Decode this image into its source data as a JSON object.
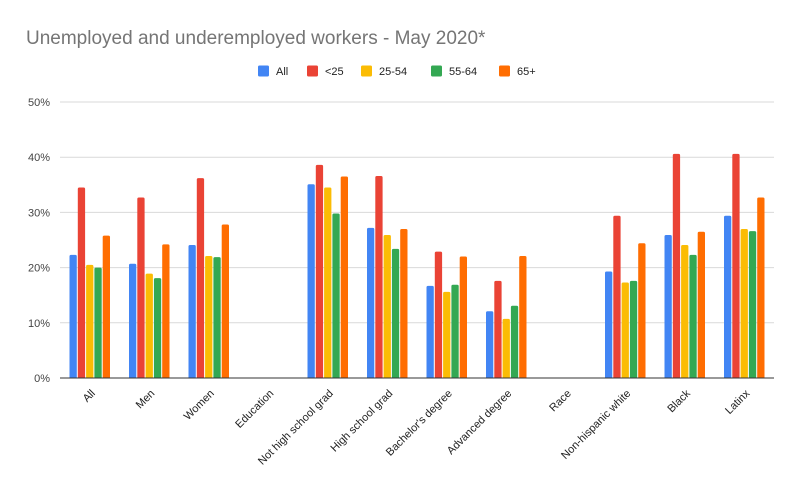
{
  "chart_data": {
    "type": "bar",
    "title": "Unemployed and underemployed workers - May 2020*",
    "xlabel": "",
    "ylabel": "",
    "ylim": [
      0,
      50
    ],
    "yticks": [
      "0%",
      "10%",
      "20%",
      "30%",
      "40%",
      "50%"
    ],
    "ytick_values": [
      0,
      10,
      20,
      30,
      40,
      50
    ],
    "grid": true,
    "legend_position": "top-center",
    "categories": [
      "All",
      "Men",
      "Women",
      "Education",
      "Not high school grad",
      "High school grad",
      "Bachelor's degree",
      "Advanced degree",
      "Race",
      "Non-hispanic white",
      "Black",
      "Latinx"
    ],
    "series": [
      {
        "name": "All",
        "color": "#4285f4",
        "values": [
          22.3,
          20.7,
          24.1,
          null,
          35.1,
          27.2,
          16.7,
          12.1,
          null,
          19.3,
          25.9,
          29.4
        ]
      },
      {
        "name": "<25",
        "color": "#ea4335",
        "values": [
          34.5,
          32.7,
          36.2,
          null,
          38.6,
          36.6,
          22.9,
          17.6,
          null,
          29.4,
          40.6,
          40.6
        ]
      },
      {
        "name": "25-54",
        "color": "#fbbc04",
        "values": [
          20.5,
          18.9,
          22.1,
          null,
          34.5,
          25.9,
          15.6,
          10.7,
          null,
          17.3,
          24.1,
          27.0
        ]
      },
      {
        "name": "55-64",
        "color": "#34a853",
        "values": [
          20.0,
          18.1,
          21.9,
          null,
          29.8,
          23.4,
          16.9,
          13.1,
          null,
          17.6,
          22.3,
          26.6
        ]
      },
      {
        "name": "65+",
        "color": "#ff6d01",
        "values": [
          25.8,
          24.2,
          27.8,
          null,
          36.5,
          27.0,
          22.0,
          22.1,
          null,
          24.4,
          26.5,
          32.7
        ]
      }
    ]
  }
}
